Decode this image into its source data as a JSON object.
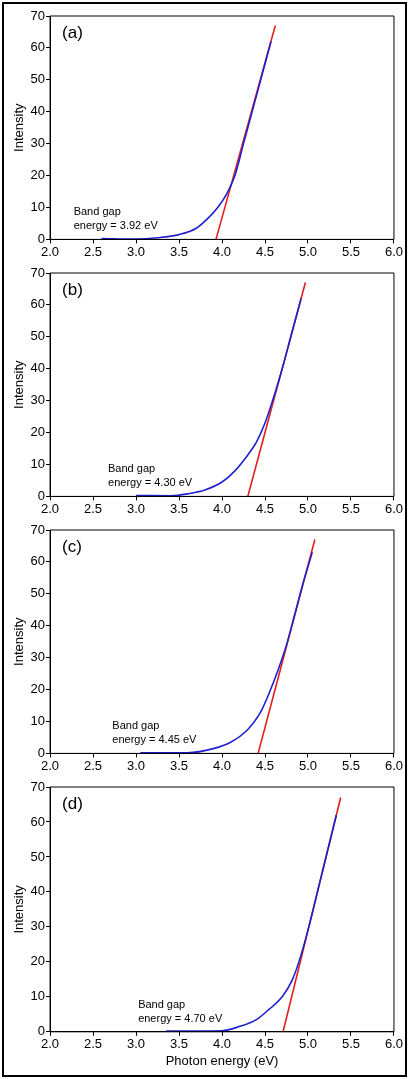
{
  "chart_data": [
    {
      "type": "line",
      "ylabel": "Intensity",
      "xlim": [
        2.0,
        6.0
      ],
      "xticks": [
        {
          "value": 2.0,
          "label": "2.0"
        },
        {
          "value": 2.5,
          "label": "2.5"
        },
        {
          "value": 3.0,
          "label": "3.0"
        },
        {
          "value": 3.5,
          "label": "3.5"
        },
        {
          "value": 4.0,
          "label": "4.0"
        },
        {
          "value": 4.5,
          "label": "4.5"
        },
        {
          "value": 5.0,
          "label": "5.0"
        },
        {
          "value": 5.5,
          "label": "5.5"
        },
        {
          "value": 6.0,
          "label": "6.0"
        }
      ],
      "ylim": [
        0,
        70
      ],
      "yticks": [
        0,
        10,
        20,
        30,
        40,
        50,
        60,
        70
      ],
      "grid": false,
      "legend": false,
      "marker": "none",
      "line_style": "solid",
      "annotations": [
        "(a)",
        "Band gap\nenergy = 3.92 eV"
      ],
      "series": [
        {
          "color": "#2020d0",
          "x": [
            2.6,
            3.0,
            3.25,
            3.5,
            3.7,
            3.85,
            3.95,
            4.05,
            4.15,
            4.25,
            4.35,
            4.45,
            4.57
          ],
          "values": [
            0.3,
            0.1,
            0.5,
            1.5,
            3.5,
            7,
            10,
            14,
            20,
            30,
            40,
            50,
            62
          ]
        },
        {
          "color": "#e02020",
          "x": [
            3.93,
            4.62
          ],
          "values": [
            0,
            67
          ]
        }
      ]
    },
    {
      "type": "line",
      "ylabel": "Intensity",
      "xlim": [
        2.0,
        6.0
      ],
      "xticks": [
        {
          "value": 2.0,
          "label": "2.0"
        },
        {
          "value": 2.5,
          "label": "2.5"
        },
        {
          "value": 3.0,
          "label": "3.0"
        },
        {
          "value": 3.5,
          "label": "3.5"
        },
        {
          "value": 4.0,
          "label": "4.0"
        },
        {
          "value": 4.5,
          "label": "4.5"
        },
        {
          "value": 5.0,
          "label": "5.0"
        },
        {
          "value": 5.5,
          "label": "5.5"
        },
        {
          "value": 6.0,
          "label": "6.0"
        }
      ],
      "ylim": [
        0,
        70
      ],
      "yticks": [
        0,
        10,
        20,
        30,
        40,
        50,
        60,
        70
      ],
      "grid": false,
      "legend": false,
      "marker": "none",
      "line_style": "solid",
      "annotations": [
        "(b)",
        "Band gap\nenergy = 4.30 eV"
      ],
      "series": [
        {
          "color": "#2020d0",
          "x": [
            3.0,
            3.4,
            3.6,
            3.8,
            4.0,
            4.15,
            4.3,
            4.4,
            4.5,
            4.6,
            4.7,
            4.8,
            4.92
          ],
          "values": [
            0.3,
            0.2,
            0.8,
            2,
            4.5,
            8,
            13,
            17,
            23,
            31,
            40,
            50,
            62
          ]
        },
        {
          "color": "#e02020",
          "x": [
            4.3,
            4.97
          ],
          "values": [
            0,
            67
          ]
        }
      ]
    },
    {
      "type": "line",
      "ylabel": "Intensity",
      "xlim": [
        2.0,
        6.0
      ],
      "xticks": [
        {
          "value": 2.0,
          "label": "2.0"
        },
        {
          "value": 2.5,
          "label": "2.5"
        },
        {
          "value": 3.0,
          "label": "3.0"
        },
        {
          "value": 3.5,
          "label": "3.5"
        },
        {
          "value": 4.0,
          "label": "4.0"
        },
        {
          "value": 4.5,
          "label": "4.5"
        },
        {
          "value": 5.0,
          "label": "5.0"
        },
        {
          "value": 5.5,
          "label": "5.5"
        },
        {
          "value": 6.0,
          "label": "6.0"
        }
      ],
      "ylim": [
        0,
        70
      ],
      "yticks": [
        0,
        10,
        20,
        30,
        40,
        50,
        60,
        70
      ],
      "grid": false,
      "legend": false,
      "marker": "none",
      "line_style": "solid",
      "annotations": [
        "(c)",
        "Band gap\nenergy = 4.45 eV"
      ],
      "series": [
        {
          "color": "#2020d0",
          "x": [
            3.05,
            3.6,
            3.9,
            4.1,
            4.3,
            4.45,
            4.55,
            4.65,
            4.75,
            4.85,
            4.95,
            5.05
          ],
          "values": [
            0.2,
            0.2,
            1.5,
            3.5,
            7.5,
            13,
            19,
            26,
            34,
            44,
            54,
            63
          ]
        },
        {
          "color": "#e02020",
          "x": [
            4.42,
            5.08
          ],
          "values": [
            0,
            67
          ]
        }
      ]
    },
    {
      "type": "line",
      "xlabel": "Photon energy (eV)",
      "ylabel": "Intensity",
      "xlim": [
        2.0,
        6.0
      ],
      "xticks": [
        {
          "value": 2.0,
          "label": "2.0"
        },
        {
          "value": 2.5,
          "label": "2.5"
        },
        {
          "value": 3.0,
          "label": "3.0"
        },
        {
          "value": 3.5,
          "label": "3.5"
        },
        {
          "value": 4.0,
          "label": "4.0"
        },
        {
          "value": 4.5,
          "label": "4.5"
        },
        {
          "value": 5.0,
          "label": "5.0"
        },
        {
          "value": 5.5,
          "label": "5.5"
        },
        {
          "value": 6.0,
          "label": "6.0"
        }
      ],
      "ylim": [
        0,
        70
      ],
      "yticks": [
        0,
        10,
        20,
        30,
        40,
        50,
        60,
        70
      ],
      "grid": false,
      "legend": false,
      "marker": "none",
      "line_style": "solid",
      "annotations": [
        "(d)",
        "Band gap\nenergy = 4.70 eV"
      ],
      "series": [
        {
          "color": "#2020d0",
          "x": [
            3.35,
            4.0,
            4.2,
            4.4,
            4.55,
            4.7,
            4.82,
            4.92,
            5.02,
            5.12,
            5.22,
            5.33
          ],
          "values": [
            0.2,
            0.3,
            1.5,
            3.5,
            6.5,
            10,
            15,
            22,
            31,
            41,
            51,
            62
          ]
        },
        {
          "color": "#e02020",
          "x": [
            4.71,
            5.38
          ],
          "values": [
            0,
            67
          ]
        }
      ]
    }
  ]
}
